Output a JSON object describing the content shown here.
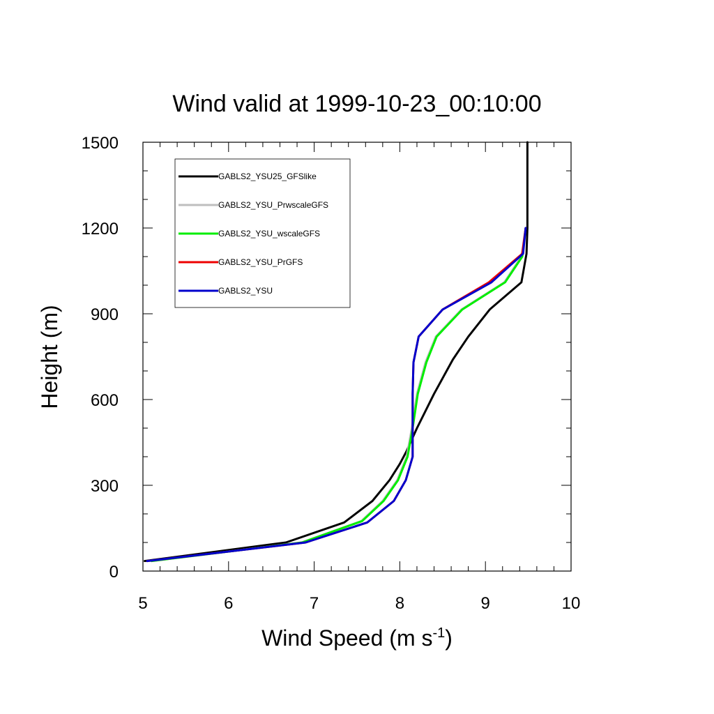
{
  "chart_data": {
    "type": "line",
    "title": "Wind valid at 1999-10-23_00:10:00",
    "xlabel": "Wind Speed (m s",
    "xlabel_sup": "-1",
    "xlabel_close": ")",
    "ylabel": "Height (m)",
    "xlim": [
      5,
      10
    ],
    "ylim": [
      0,
      1500
    ],
    "xticks": [
      "5",
      "6",
      "7",
      "8",
      "9",
      "10"
    ],
    "yticks": [
      "0",
      "300",
      "600",
      "900",
      "1200",
      "1500"
    ],
    "legend_position": "top-left",
    "series": [
      {
        "name": "GABLS2_YSU25_GFSlike",
        "color": "#000000",
        "points": [
          [
            5.02,
            35
          ],
          [
            6.67,
            100
          ],
          [
            7.35,
            170
          ],
          [
            7.68,
            245
          ],
          [
            7.88,
            318
          ],
          [
            8.0,
            375
          ],
          [
            8.08,
            420
          ],
          [
            8.2,
            500
          ],
          [
            8.4,
            620
          ],
          [
            8.62,
            740
          ],
          [
            8.8,
            820
          ],
          [
            9.05,
            915
          ],
          [
            9.42,
            1010
          ],
          [
            9.48,
            1110
          ],
          [
            9.49,
            1200
          ],
          [
            9.49,
            1500
          ]
        ]
      },
      {
        "name": "GABLS2_YSU_PrwscaleGFS",
        "color": "#bebebe",
        "points": [
          [
            5.1,
            35
          ],
          [
            6.85,
            100
          ],
          [
            7.55,
            175
          ],
          [
            7.8,
            245
          ],
          [
            7.97,
            318
          ],
          [
            8.08,
            400
          ],
          [
            8.14,
            500
          ],
          [
            8.2,
            620
          ],
          [
            8.3,
            730
          ],
          [
            8.42,
            820
          ],
          [
            8.72,
            915
          ],
          [
            9.22,
            1010
          ],
          [
            9.42,
            1100
          ],
          [
            9.47,
            1200
          ]
        ]
      },
      {
        "name": "GABLS2_YSU_wscaleGFS",
        "color": "#00ee00",
        "points": [
          [
            5.1,
            35
          ],
          [
            6.86,
            100
          ],
          [
            7.56,
            175
          ],
          [
            7.81,
            245
          ],
          [
            7.98,
            318
          ],
          [
            8.09,
            400
          ],
          [
            8.15,
            500
          ],
          [
            8.21,
            620
          ],
          [
            8.31,
            730
          ],
          [
            8.43,
            820
          ],
          [
            8.73,
            915
          ],
          [
            9.23,
            1010
          ],
          [
            9.43,
            1100
          ],
          [
            9.47,
            1200
          ]
        ]
      },
      {
        "name": "GABLS2_YSU_PrGFS",
        "color": "#ee0000",
        "points": [
          [
            5.05,
            35
          ],
          [
            6.9,
            100
          ],
          [
            7.62,
            170
          ],
          [
            7.93,
            245
          ],
          [
            8.07,
            318
          ],
          [
            8.15,
            400
          ],
          [
            8.15,
            500
          ],
          [
            8.15,
            620
          ],
          [
            8.16,
            730
          ],
          [
            8.22,
            820
          ],
          [
            8.5,
            915
          ],
          [
            9.04,
            1010
          ],
          [
            9.43,
            1110
          ],
          [
            9.47,
            1200
          ]
        ]
      },
      {
        "name": "GABLS2_YSU",
        "color": "#0000cc",
        "points": [
          [
            5.05,
            35
          ],
          [
            6.9,
            100
          ],
          [
            7.62,
            170
          ],
          [
            7.93,
            245
          ],
          [
            8.07,
            318
          ],
          [
            8.15,
            400
          ],
          [
            8.15,
            500
          ],
          [
            8.15,
            620
          ],
          [
            8.16,
            730
          ],
          [
            8.22,
            820
          ],
          [
            8.5,
            915
          ],
          [
            9.07,
            1010
          ],
          [
            9.44,
            1110
          ],
          [
            9.47,
            1200
          ]
        ]
      }
    ]
  }
}
